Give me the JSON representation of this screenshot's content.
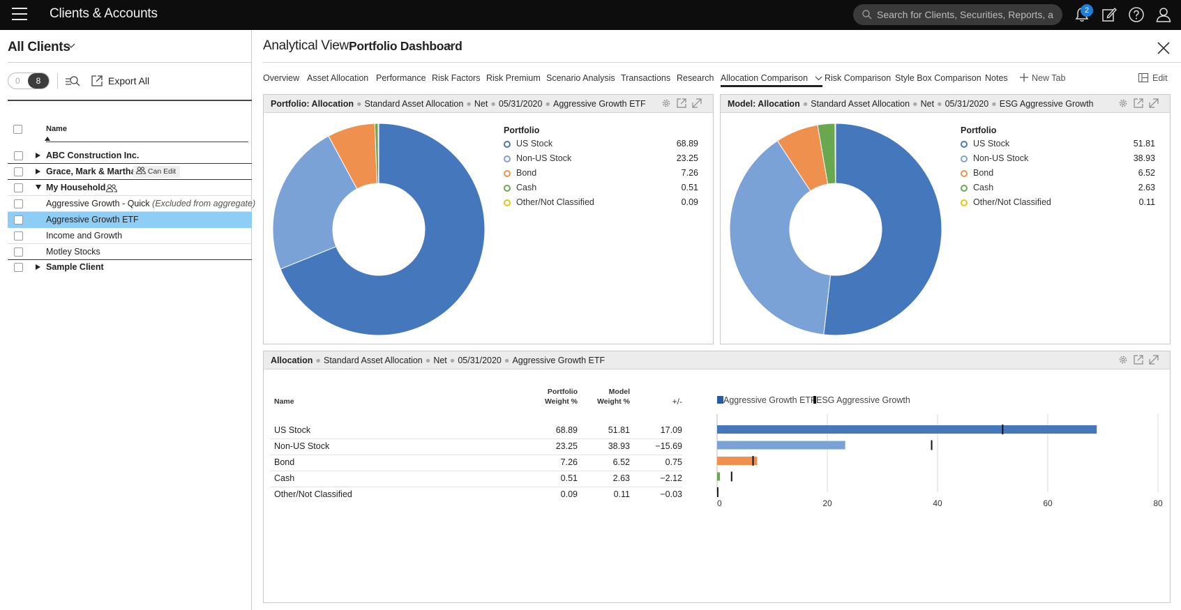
{
  "topbar": {
    "title": "Clients & Accounts",
    "search_placeholder": "Search for Clients, Securities, Reports, a",
    "notification_count": "2"
  },
  "sidebar": {
    "title": "All Clients",
    "toggle_off": "0",
    "toggle_on": "8",
    "export_label": "Export All",
    "name_header": "Name",
    "rows": [
      {
        "label": "ABC Construction Inc.",
        "bold": true,
        "expander": "collapsed"
      },
      {
        "label": "Grace, Mark & Martha",
        "bold": true,
        "expander": "collapsed",
        "badge": "Can Edit"
      },
      {
        "label": "My Household",
        "bold": true,
        "expander": "expanded"
      },
      {
        "label": "Aggressive Growth - Quick",
        "note": "(Excluded from aggregate)"
      },
      {
        "label": "Aggressive Growth ETF",
        "selected": true
      },
      {
        "label": "Income and Growth"
      },
      {
        "label": "Motley Stocks"
      },
      {
        "label": "Sample Client",
        "bold": true,
        "expander": "collapsed"
      }
    ]
  },
  "main": {
    "view_label": "Analytical View:",
    "view_value": "Portfolio Dashboard",
    "tabs": [
      "Overview",
      "Asset Allocation",
      "Performance",
      "Risk Factors",
      "Risk Premium",
      "Scenario Analysis",
      "Transactions",
      "Research",
      "Allocation Comparison",
      "Risk Comparison",
      "Style Box Comparison",
      "Notes"
    ],
    "active_tab": "Allocation Comparison",
    "new_tab_label": "New Tab",
    "edit_label": "Edit"
  },
  "portfolio_panel": {
    "title_bold": "Portfolio: Allocation",
    "crumbs": [
      "Standard Asset Allocation",
      "Net",
      "05/31/2020",
      "Aggressive Growth ETF"
    ],
    "legend_title": "Portfolio"
  },
  "model_panel": {
    "title_bold": "Model: Allocation",
    "crumbs": [
      "Standard Asset Allocation",
      "Net",
      "05/31/2020",
      "ESG Aggressive Growth"
    ],
    "legend_title": "Portfolio"
  },
  "comparison_panel": {
    "title_bold": "Allocation",
    "crumbs": [
      "Standard Asset Allocation",
      "Net",
      "05/31/2020",
      "Aggressive Growth ETF"
    ],
    "col_name": "Name",
    "col_portfolio_1": "Portfolio",
    "col_portfolio_2": "Weight %",
    "col_model_1": "Model",
    "col_model_2": "Weight %",
    "col_diff": "+/-",
    "legend_portfolio": "Aggressive Growth ETF",
    "legend_model": "ESG Aggressive Growth"
  },
  "chart_data": [
    {
      "type": "pie",
      "title": "Portfolio",
      "categories": [
        "US Stock",
        "Non-US Stock",
        "Bond",
        "Cash",
        "Other/Not Classified"
      ],
      "values": [
        68.89,
        23.25,
        7.26,
        0.51,
        0.09
      ],
      "display_values": [
        "68.89",
        "23.25",
        "7.26",
        "0.51",
        "0.09"
      ],
      "colors": [
        "#4477bb",
        "#7aa2d6",
        "#f0904f",
        "#6aa84f",
        "#e6c21a"
      ]
    },
    {
      "type": "pie",
      "title": "Portfolio",
      "categories": [
        "US Stock",
        "Non-US Stock",
        "Bond",
        "Cash",
        "Other/Not Classified"
      ],
      "values": [
        51.81,
        38.93,
        6.52,
        2.63,
        0.11
      ],
      "display_values": [
        "51.81",
        "38.93",
        "6.52",
        "2.63",
        "0.11"
      ],
      "colors": [
        "#4477bb",
        "#7aa2d6",
        "#f0904f",
        "#6aa84f",
        "#e6c21a"
      ]
    },
    {
      "type": "bar",
      "categories": [
        "US Stock",
        "Non-US Stock",
        "Bond",
        "Cash",
        "Other/Not Classified"
      ],
      "series": [
        {
          "name": "Aggressive Growth ETF",
          "values": [
            68.89,
            23.25,
            7.26,
            0.51,
            0.09
          ]
        },
        {
          "name": "ESG Aggressive Growth",
          "values": [
            51.81,
            38.93,
            6.52,
            2.63,
            0.11
          ]
        }
      ],
      "diff_display": [
        "17.09",
        "−15.69",
        "0.75",
        "−2.12",
        "−0.03"
      ],
      "portfolio_display": [
        "68.89",
        "23.25",
        "7.26",
        "0.51",
        "0.09"
      ],
      "model_display": [
        "51.81",
        "38.93",
        "6.52",
        "2.63",
        "0.11"
      ],
      "xlim": [
        0,
        80
      ],
      "xticks": [
        "0",
        "20",
        "40",
        "60",
        "80"
      ],
      "bar_colors": [
        "#4477bb",
        "#7aa2d6",
        "#f0904f",
        "#6aa84f",
        "#e6c21a"
      ],
      "grid": true
    }
  ]
}
